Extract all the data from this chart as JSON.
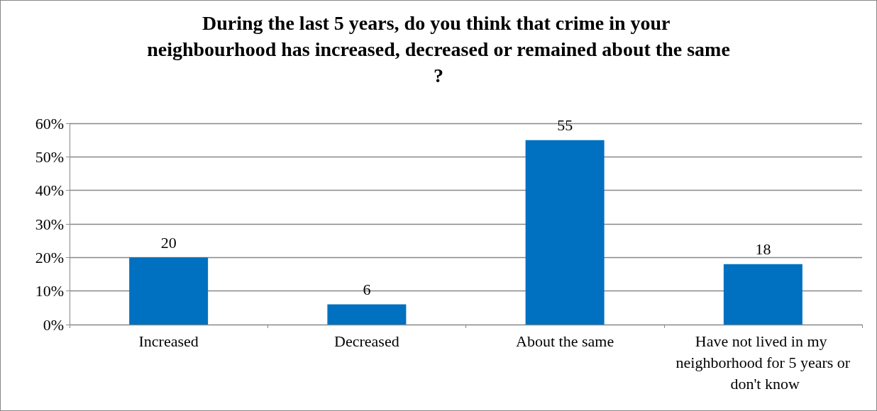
{
  "chart_data": {
    "type": "bar",
    "title": "During the last 5 years, do you think that crime in your neighbourhood has increased, decreased or remained about the same?",
    "categories": [
      "Increased",
      "Decreased",
      "About the same",
      "Have not lived in my neighborhood for 5 years or don't know"
    ],
    "values": [
      20,
      6,
      55,
      18
    ],
    "color": "#0070c0",
    "ylim": [
      0,
      60
    ],
    "yticks": [
      {
        "value": 0,
        "label": "0%"
      },
      {
        "value": 10,
        "label": "10%"
      },
      {
        "value": 20,
        "label": "20%"
      },
      {
        "value": 30,
        "label": "30%"
      },
      {
        "value": 40,
        "label": "40%"
      },
      {
        "value": 50,
        "label": "50%"
      },
      {
        "value": 60,
        "label": "60%"
      }
    ],
    "grid": "y",
    "data_labels": true
  }
}
